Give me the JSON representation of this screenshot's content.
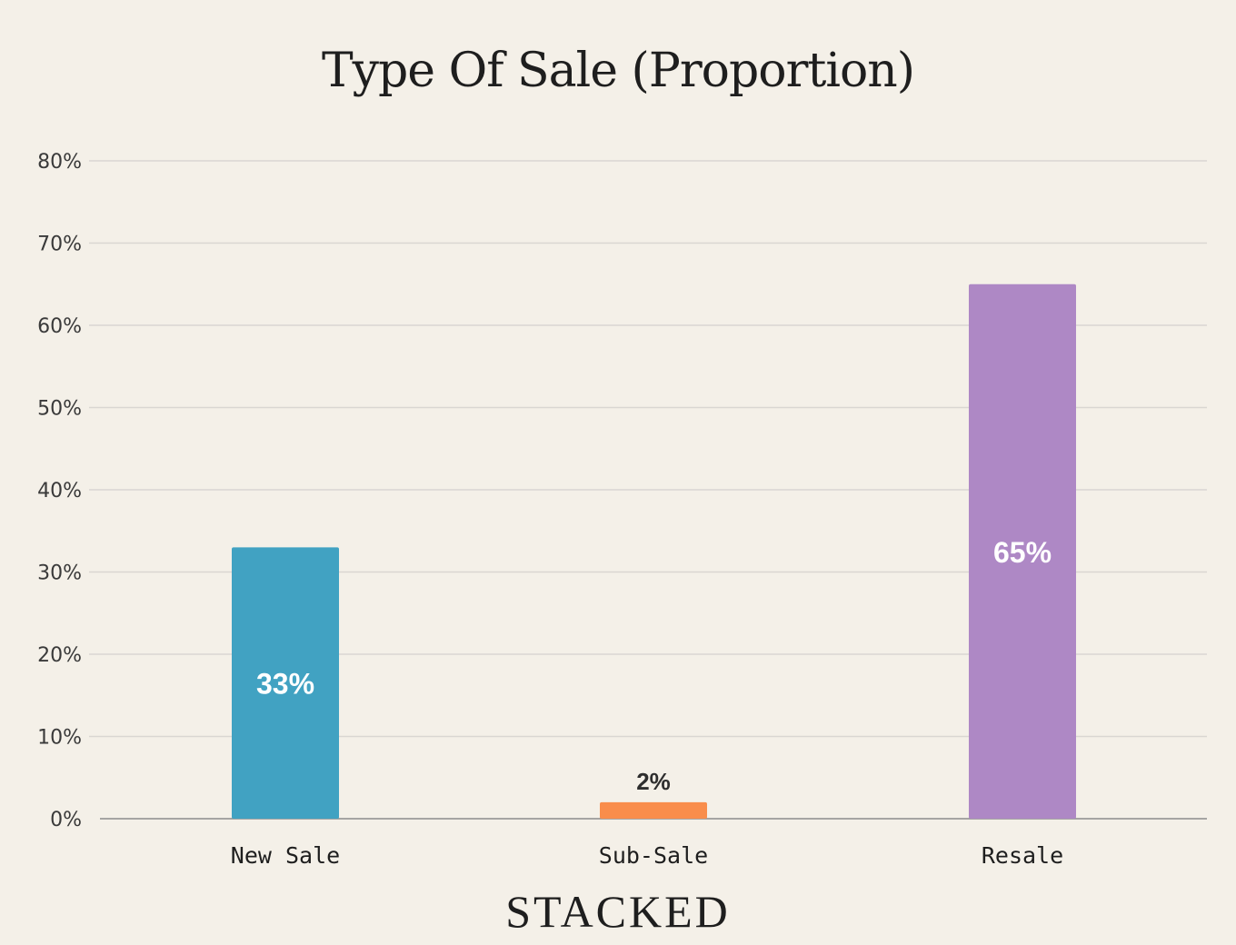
{
  "chart_data": {
    "type": "bar",
    "title": "Type Of Sale (Proportion)",
    "xlabel": "",
    "ylabel": "",
    "categories": [
      "New Sale",
      "Sub-Sale",
      "Resale"
    ],
    "values": [
      33,
      2,
      65
    ],
    "value_labels": [
      "33%",
      "2%",
      "65%"
    ],
    "colors": [
      "#41a2c2",
      "#f98d4b",
      "#ae88c5"
    ],
    "ylim": [
      0,
      80
    ],
    "yticks": [
      0,
      10,
      20,
      30,
      40,
      50,
      60,
      70,
      80
    ],
    "ytick_labels": [
      "0%",
      "10%",
      "20%",
      "30%",
      "40%",
      "50%",
      "60%",
      "70%",
      "80%"
    ],
    "grid": true,
    "legend": "none"
  },
  "brand": {
    "logo_text": "STACKED"
  }
}
